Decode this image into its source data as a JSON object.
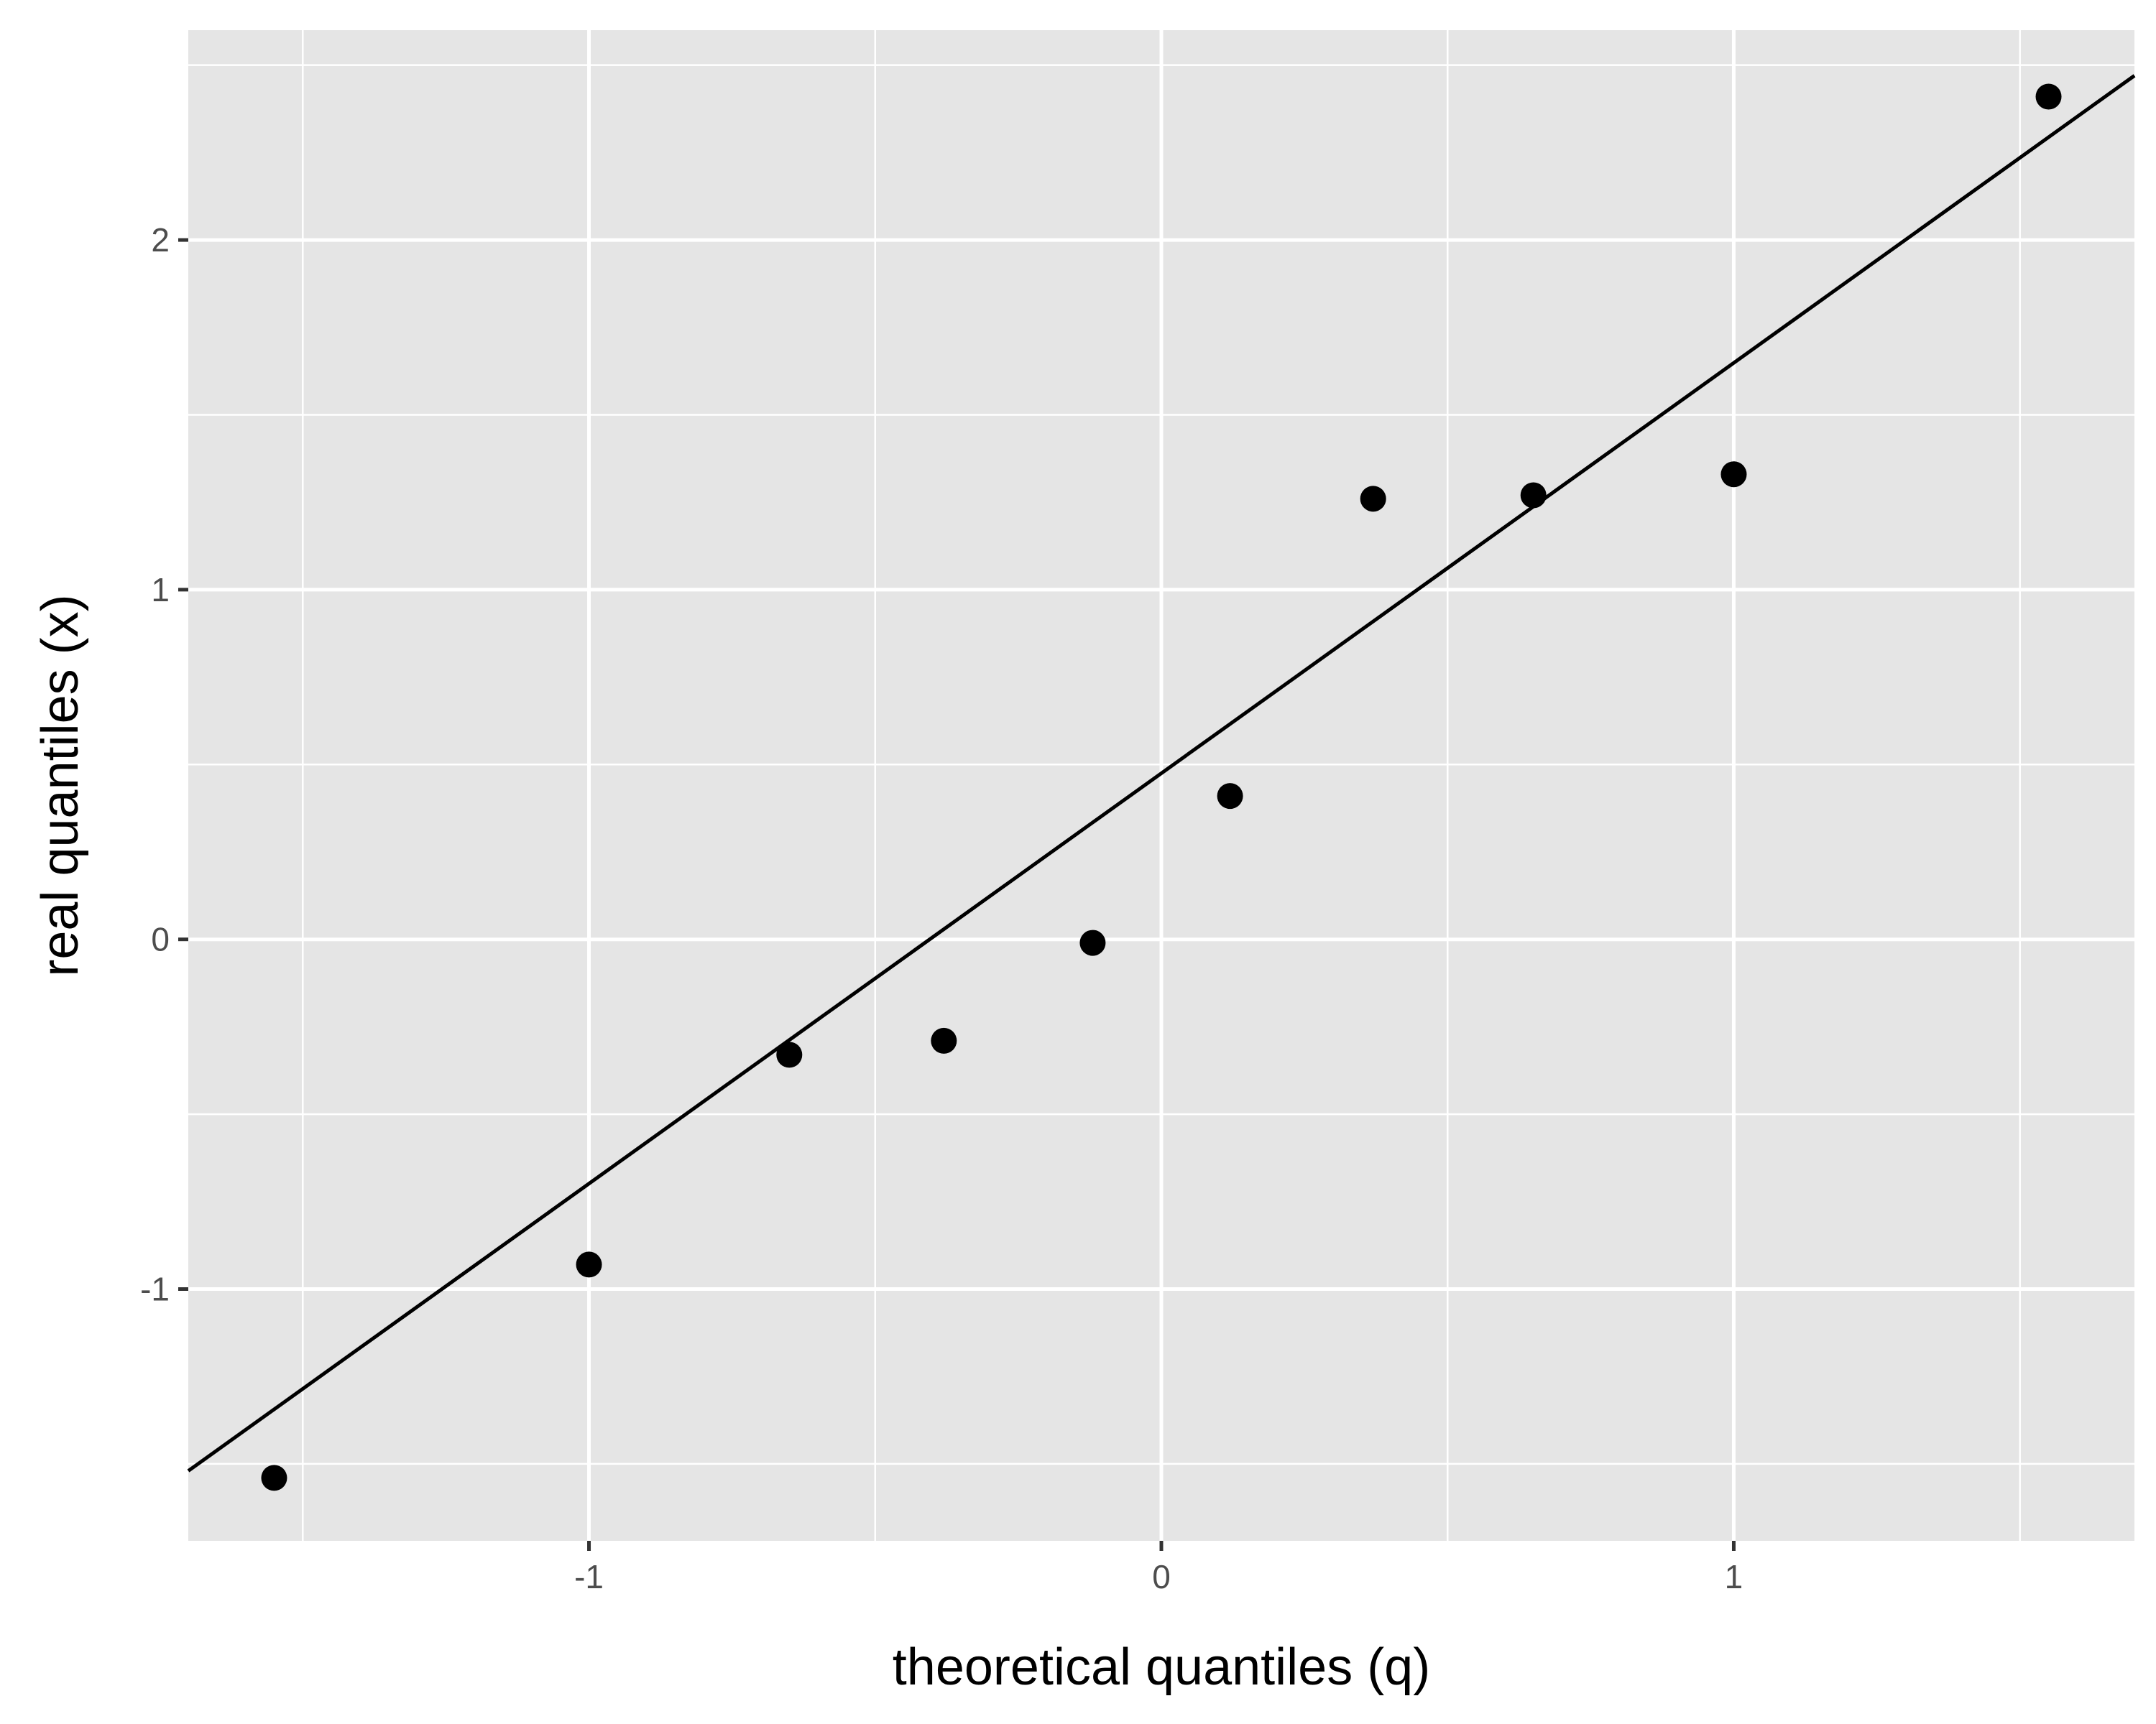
{
  "chart_data": {
    "type": "scatter",
    "title": "",
    "xlabel": "theoretical quantiles (q)",
    "ylabel": "real quantiles (x)",
    "xlim": [
      -1.7,
      1.7
    ],
    "ylim": [
      -1.72,
      2.6
    ],
    "x_ticks": [
      -1,
      0,
      1
    ],
    "y_ticks": [
      -1,
      0,
      1,
      2
    ],
    "x_tick_labels": [
      "-1",
      "0",
      "1"
    ],
    "y_tick_labels": [
      "-1",
      "0",
      "1",
      "2"
    ],
    "grid": true,
    "background": "#e5e5e5",
    "grid_color": "#ffffff",
    "point_color": "#000000",
    "line_color": "#000000",
    "points": [
      {
        "x": -1.55,
        "y": -1.54
      },
      {
        "x": -1.0,
        "y": -0.93
      },
      {
        "x": -0.65,
        "y": -0.33
      },
      {
        "x": -0.38,
        "y": -0.29
      },
      {
        "x": -0.12,
        "y": -0.01
      },
      {
        "x": 0.12,
        "y": 0.41
      },
      {
        "x": 0.37,
        "y": 1.26
      },
      {
        "x": 0.65,
        "y": 1.27
      },
      {
        "x": 1.0,
        "y": 1.33
      },
      {
        "x": 1.55,
        "y": 2.41
      }
    ],
    "reference_line": {
      "x1": -1.7,
      "y1": -1.52,
      "x2": 1.7,
      "y2": 2.47
    }
  }
}
